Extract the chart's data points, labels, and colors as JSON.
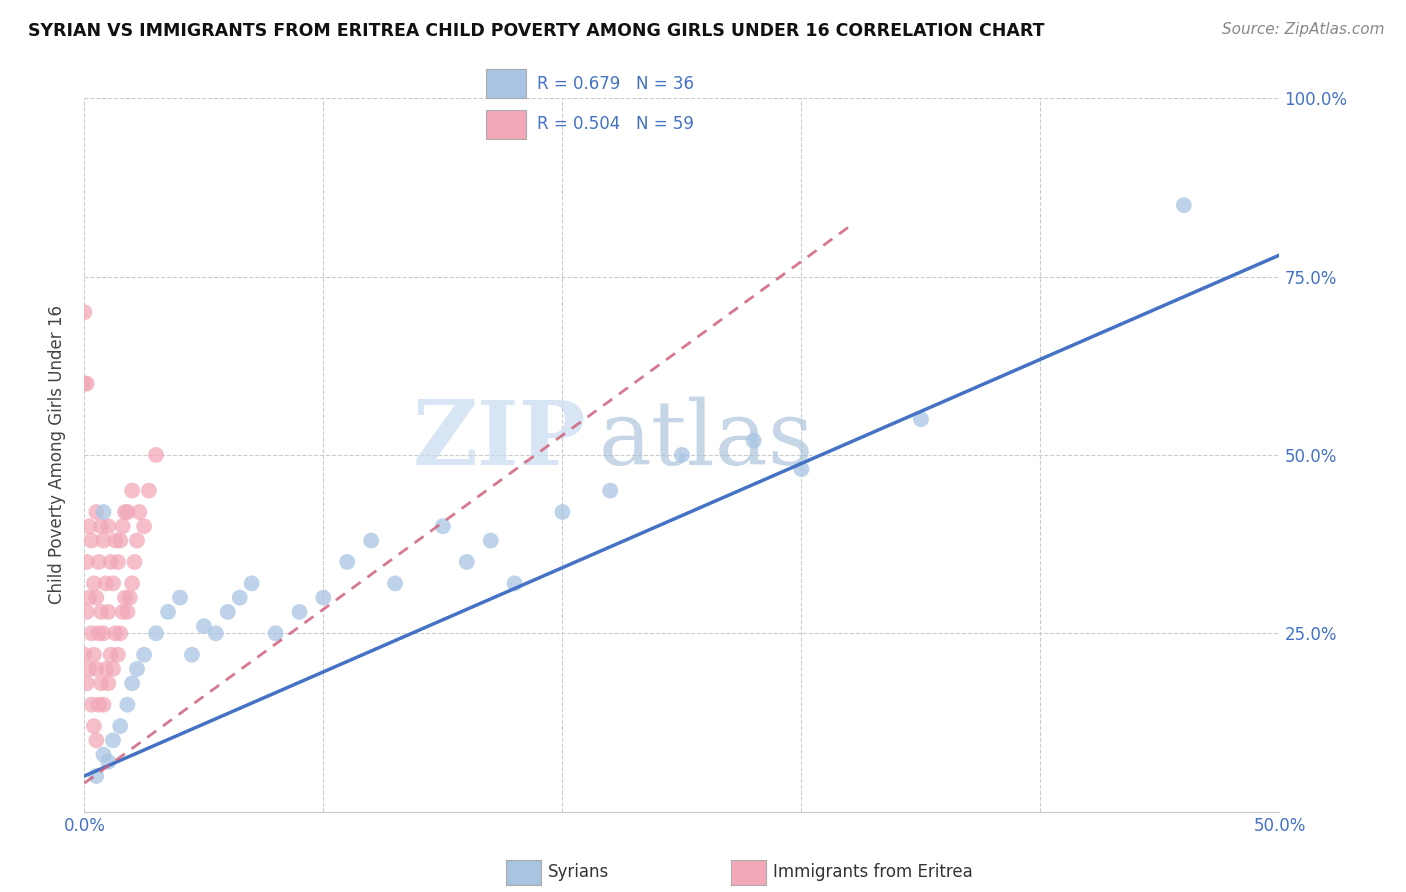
{
  "title": "SYRIAN VS IMMIGRANTS FROM ERITREA CHILD POVERTY AMONG GIRLS UNDER 16 CORRELATION CHART",
  "source": "Source: ZipAtlas.com",
  "ylabel": "Child Poverty Among Girls Under 16",
  "xlim": [
    0.0,
    0.5
  ],
  "ylim": [
    0.0,
    1.0
  ],
  "syrian_color": "#a8c4e2",
  "eritrea_color": "#f2a8b8",
  "syrian_line_color": "#4472c4",
  "eritrea_line_color": "#d0607a",
  "R_syrian": 0.679,
  "N_syrian": 36,
  "R_eritrea": 0.504,
  "N_eritrea": 59,
  "background_color": "#ffffff",
  "syrian_x": [
    0.005,
    0.008,
    0.01,
    0.012,
    0.015,
    0.018,
    0.02,
    0.022,
    0.025,
    0.03,
    0.035,
    0.04,
    0.045,
    0.05,
    0.055,
    0.06,
    0.065,
    0.07,
    0.08,
    0.09,
    0.1,
    0.11,
    0.12,
    0.13,
    0.15,
    0.16,
    0.17,
    0.18,
    0.2,
    0.22,
    0.25,
    0.28,
    0.3,
    0.35,
    0.46,
    0.008
  ],
  "syrian_y": [
    0.05,
    0.08,
    0.07,
    0.1,
    0.12,
    0.15,
    0.18,
    0.2,
    0.22,
    0.25,
    0.28,
    0.3,
    0.22,
    0.26,
    0.25,
    0.28,
    0.3,
    0.32,
    0.25,
    0.28,
    0.3,
    0.35,
    0.38,
    0.32,
    0.4,
    0.35,
    0.38,
    0.32,
    0.42,
    0.45,
    0.5,
    0.52,
    0.48,
    0.55,
    0.85,
    0.42
  ],
  "eritrea_x": [
    0.0,
    0.001,
    0.001,
    0.001,
    0.002,
    0.002,
    0.002,
    0.003,
    0.003,
    0.003,
    0.004,
    0.004,
    0.004,
    0.005,
    0.005,
    0.005,
    0.005,
    0.006,
    0.006,
    0.006,
    0.007,
    0.007,
    0.007,
    0.008,
    0.008,
    0.008,
    0.009,
    0.009,
    0.01,
    0.01,
    0.01,
    0.011,
    0.011,
    0.012,
    0.012,
    0.013,
    0.013,
    0.014,
    0.014,
    0.015,
    0.015,
    0.016,
    0.016,
    0.017,
    0.017,
    0.018,
    0.018,
    0.019,
    0.02,
    0.02,
    0.021,
    0.022,
    0.023,
    0.025,
    0.027,
    0.03,
    0.0,
    0.0,
    0.001
  ],
  "eritrea_y": [
    0.22,
    0.18,
    0.28,
    0.35,
    0.2,
    0.3,
    0.4,
    0.15,
    0.25,
    0.38,
    0.12,
    0.22,
    0.32,
    0.1,
    0.2,
    0.3,
    0.42,
    0.15,
    0.25,
    0.35,
    0.18,
    0.28,
    0.4,
    0.15,
    0.25,
    0.38,
    0.2,
    0.32,
    0.18,
    0.28,
    0.4,
    0.22,
    0.35,
    0.2,
    0.32,
    0.25,
    0.38,
    0.22,
    0.35,
    0.25,
    0.38,
    0.28,
    0.4,
    0.3,
    0.42,
    0.28,
    0.42,
    0.3,
    0.32,
    0.45,
    0.35,
    0.38,
    0.42,
    0.4,
    0.45,
    0.5,
    0.6,
    0.7,
    0.6
  ]
}
